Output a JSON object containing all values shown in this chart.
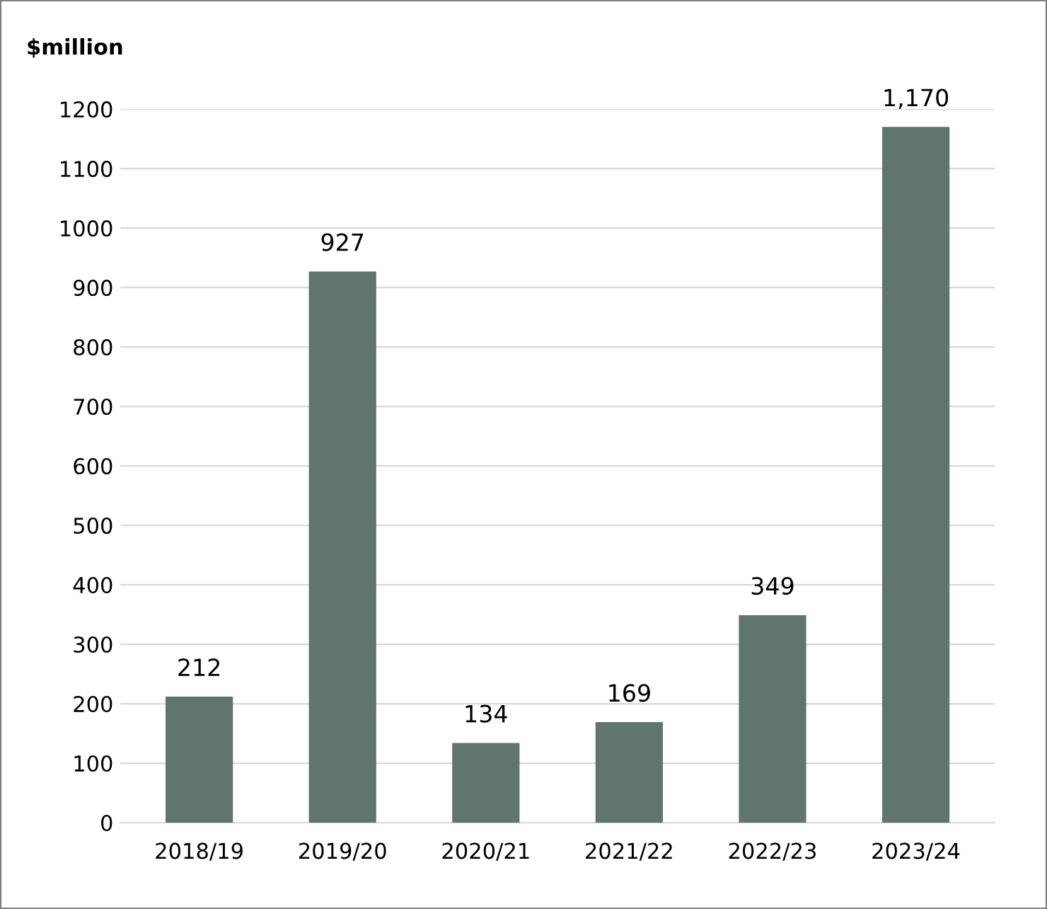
{
  "chart_data": {
    "type": "bar",
    "ylabel": "$million",
    "categories": [
      "2018/19",
      "2019/20",
      "2020/21",
      "2021/22",
      "2022/23",
      "2023/24"
    ],
    "values": [
      212,
      927,
      134,
      169,
      349,
      1170
    ],
    "value_labels": [
      "212",
      "927",
      "134",
      "169",
      "349",
      "1,170"
    ],
    "color": "#5f756e",
    "ylim": [
      0,
      1200
    ],
    "yticks": [
      0,
      100,
      200,
      300,
      400,
      500,
      600,
      700,
      800,
      900,
      1000,
      1100,
      1200
    ],
    "grid": "y",
    "legend": false
  }
}
